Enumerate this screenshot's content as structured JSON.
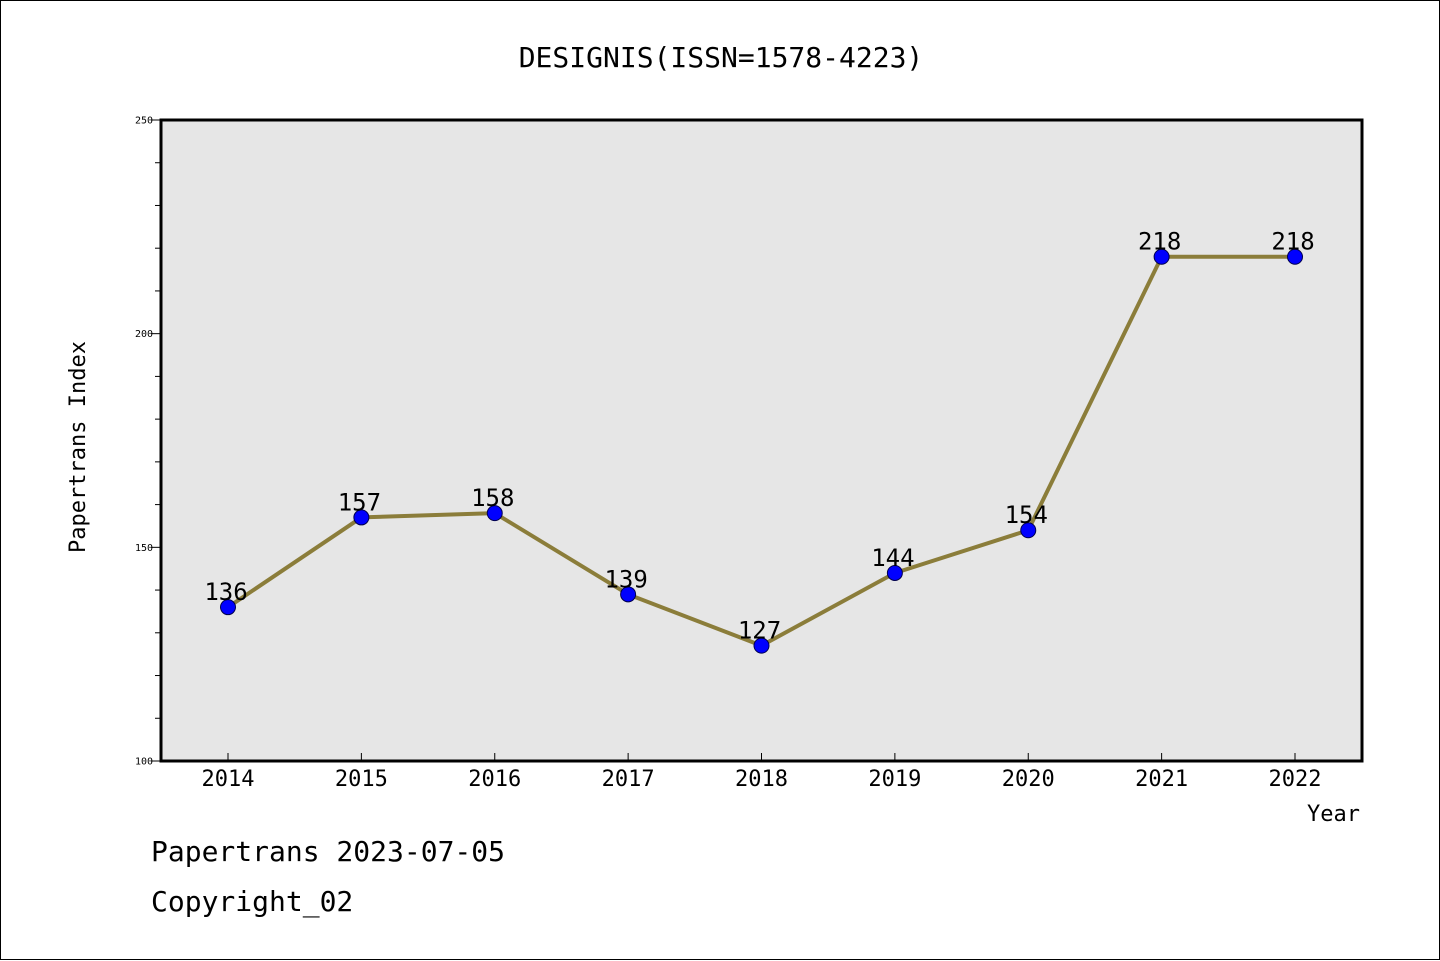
{
  "chart_data": {
    "type": "line",
    "title": "DESIGNIS(ISSN=1578-4223)",
    "xlabel": "Year",
    "ylabel": "Papertrans Index",
    "categories": [
      "2014",
      "2015",
      "2016",
      "2017",
      "2018",
      "2019",
      "2020",
      "2021",
      "2022"
    ],
    "series": [
      {
        "values": [
          136,
          157,
          158,
          139,
          127,
          144,
          154,
          218,
          218
        ]
      }
    ],
    "ylim": [
      100,
      250
    ],
    "y_ticks": [
      "100",
      "150",
      "200",
      "250"
    ],
    "grid": false,
    "colors": {
      "line": "#8b7d3a",
      "marker": "#0000ff",
      "plot_bg": "#e6e6e6"
    }
  },
  "footer": {
    "line1": "Papertrans 2023-07-05",
    "line2": "Copyright_02"
  }
}
